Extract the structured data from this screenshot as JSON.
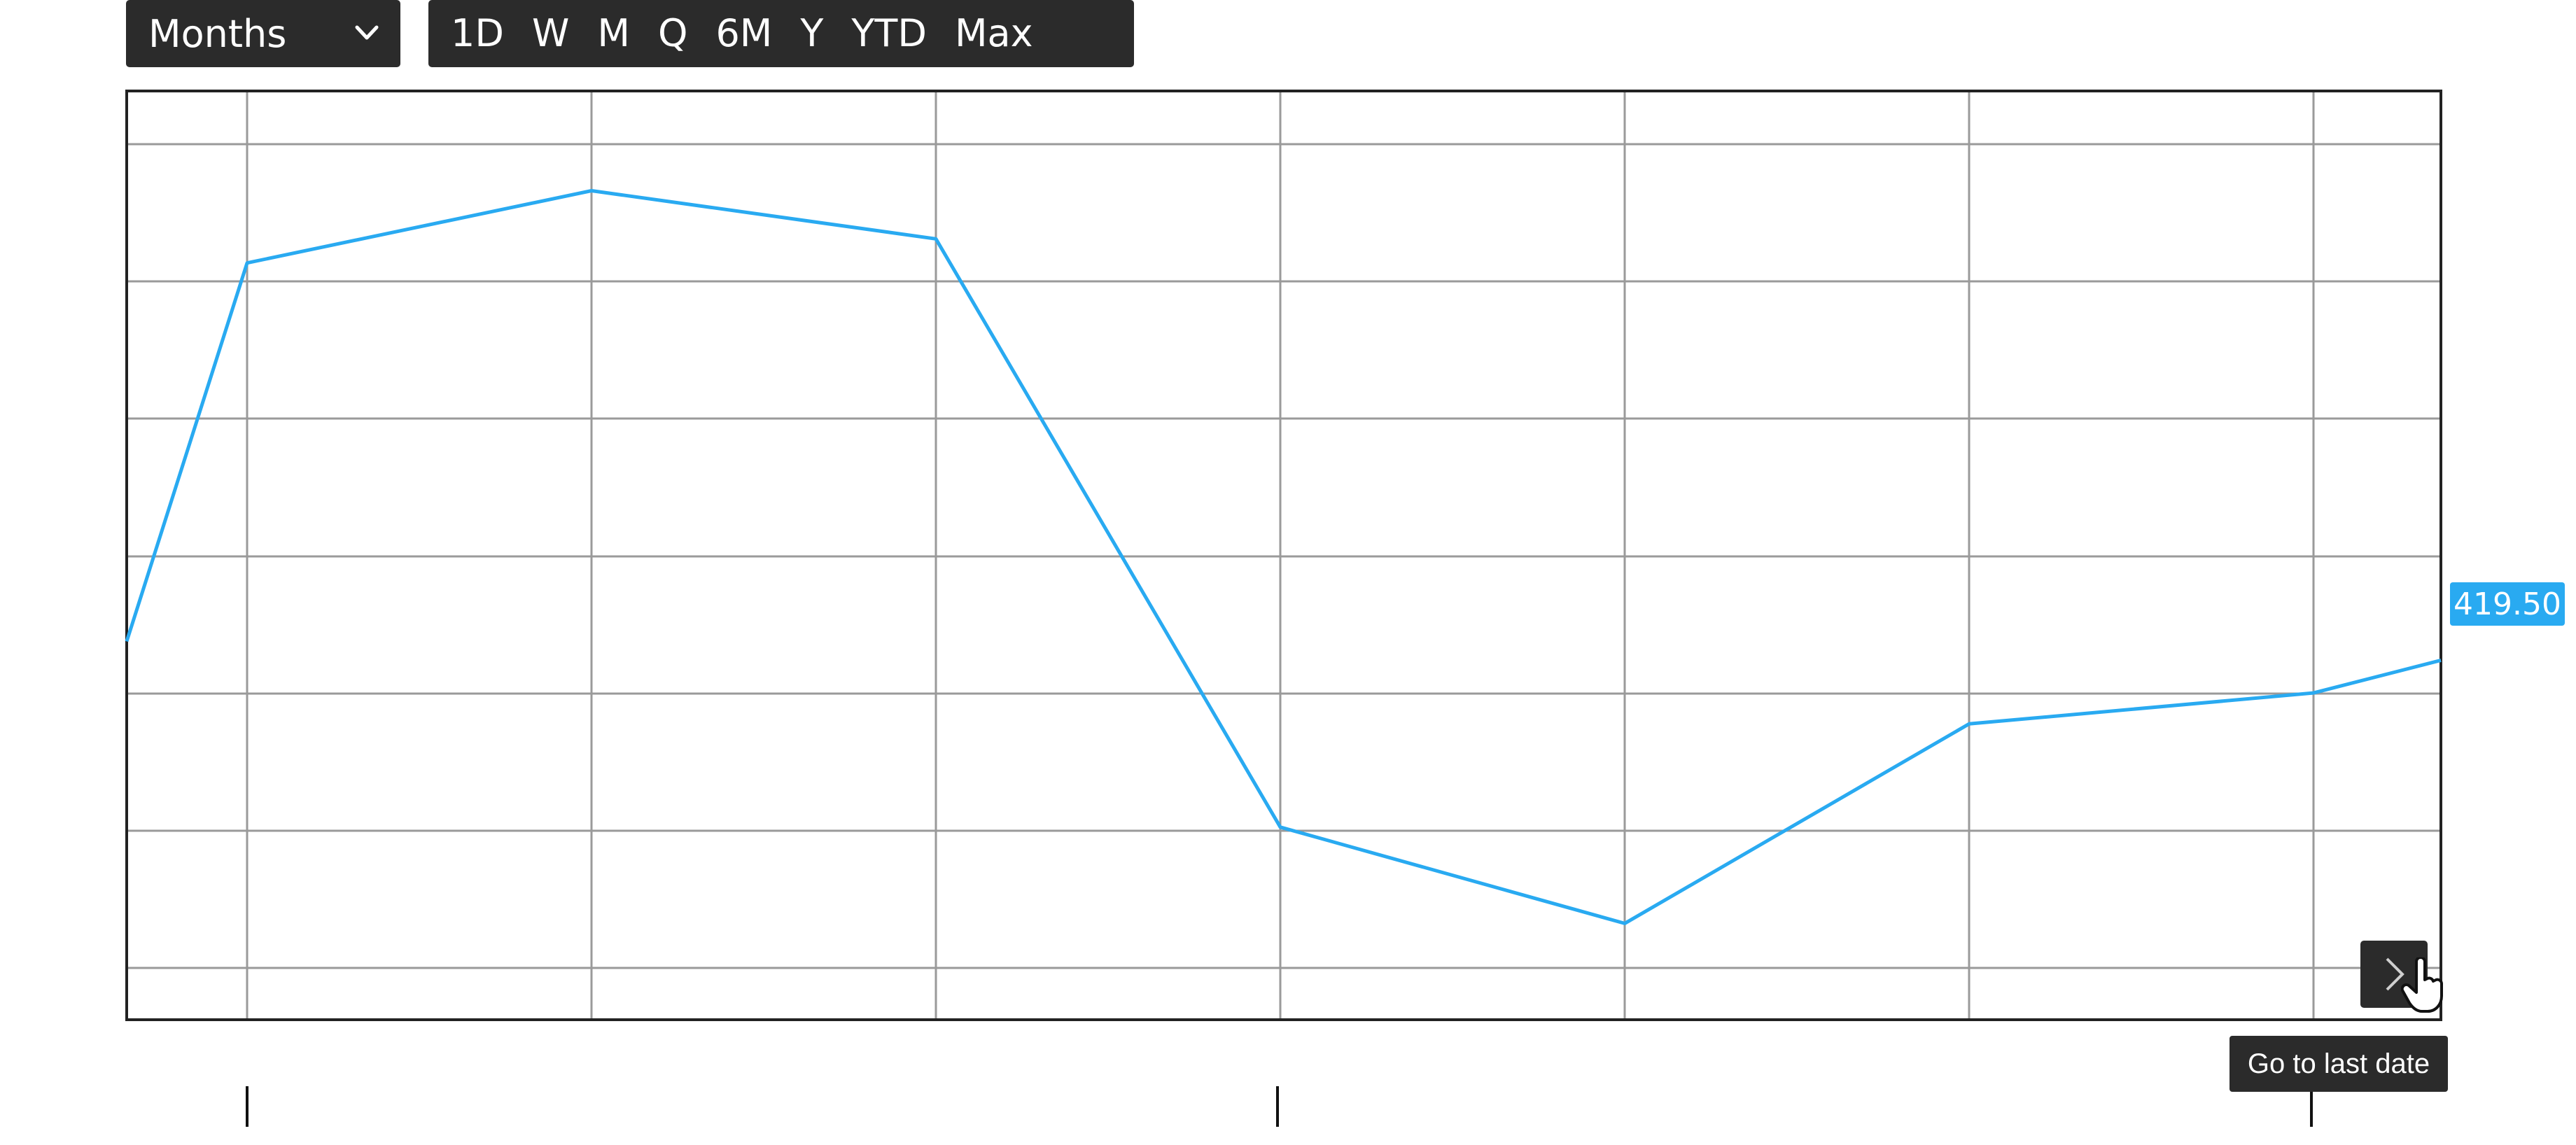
{
  "toolbar": {
    "interval": {
      "selected": "Months",
      "icon": "chevron-down-icon"
    },
    "ranges": [
      "1D",
      "W",
      "M",
      "Q",
      "6M",
      "Y",
      "YTD",
      "Max"
    ]
  },
  "chart_data": {
    "type": "line",
    "x": [
      0,
      1,
      2,
      3,
      4,
      5,
      6,
      7
    ],
    "series": [
      {
        "values": [
          421,
          432,
          434.1,
          432.7,
          415.6,
          412.8,
          418.6,
          419.5
        ]
      }
    ],
    "last_value_label": "419.50",
    "ylim": [
      410,
      437
    ],
    "grid": true,
    "colors": {
      "line": "#29aaf1",
      "grid": "#9a9a9a",
      "frame": "#222222"
    }
  },
  "navigation": {
    "go_last_tooltip": "Go to last date",
    "icon": "chevron-right-icon"
  }
}
